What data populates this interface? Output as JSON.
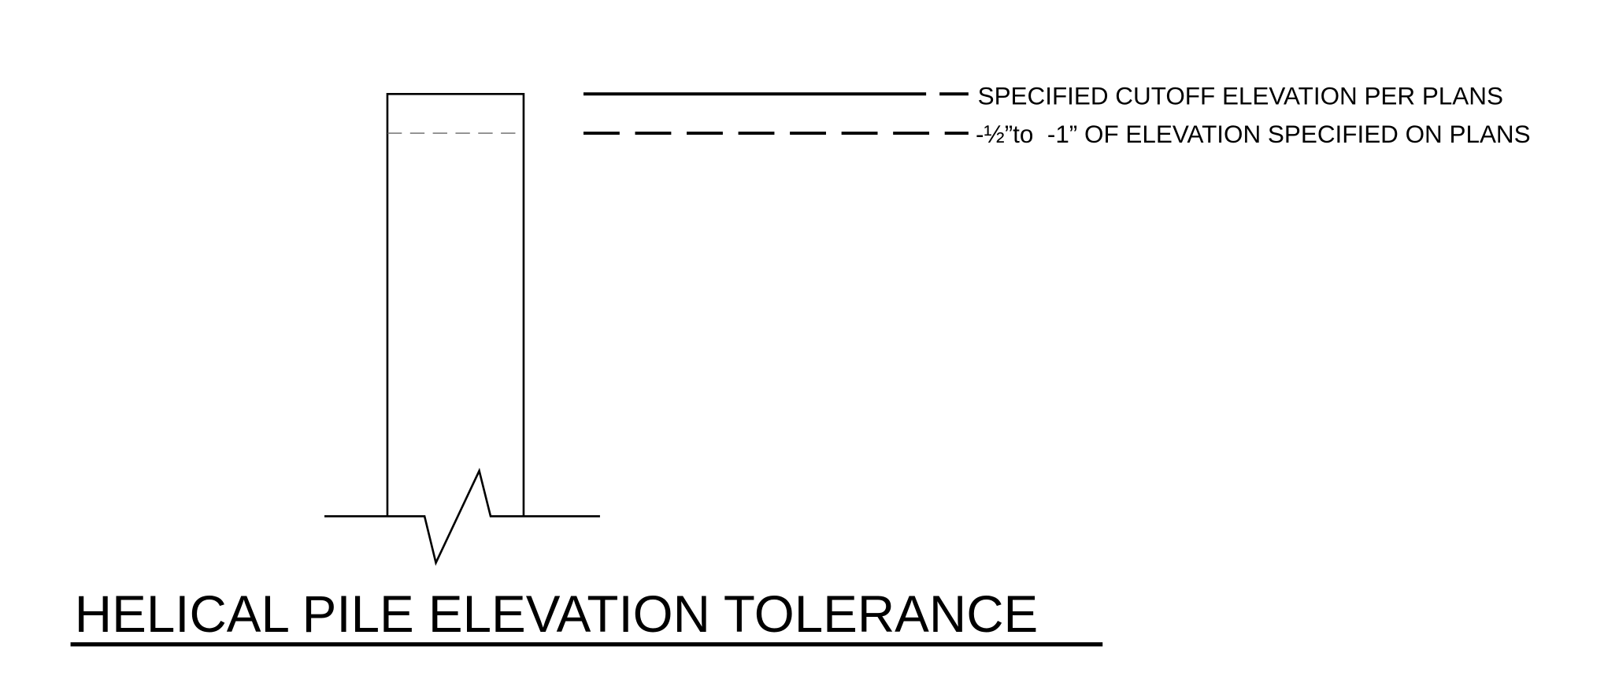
{
  "title": "HELICAL PILE ELEVATION TOLERANCE",
  "legend": [
    {
      "label": "SPECIFIED CUTOFF ELEVATION PER PLANS"
    },
    {
      "label": "-½”to  -1” OF ELEVATION SPECIFIED ON PLANS"
    }
  ]
}
